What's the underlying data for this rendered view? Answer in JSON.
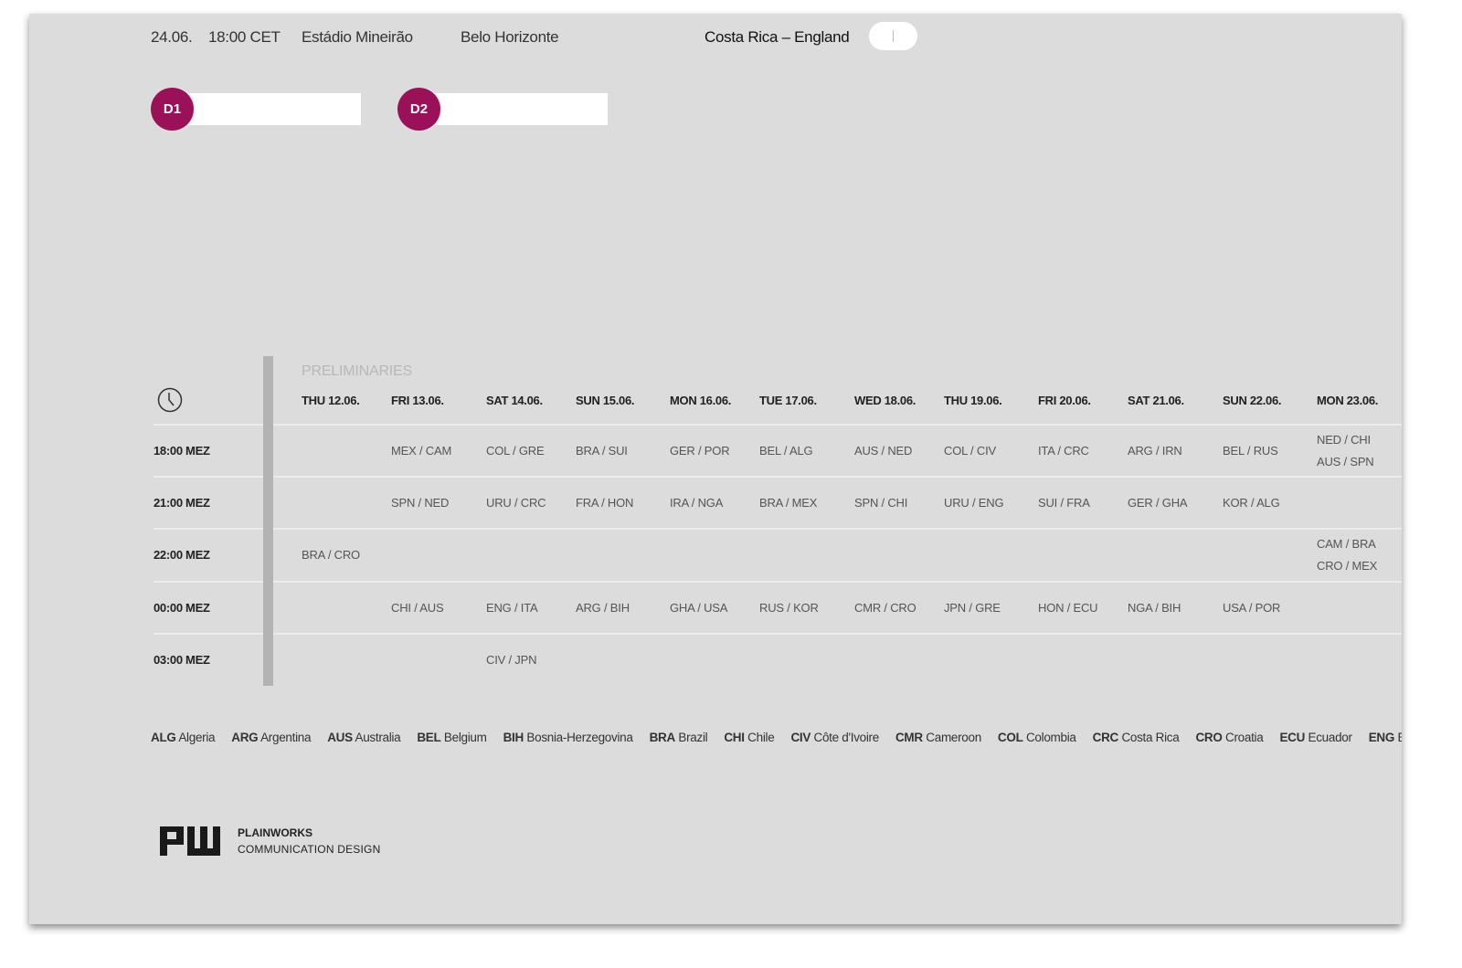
{
  "header": {
    "date": "24.06.",
    "time": "18:00 CET",
    "stadium": "Estádio Mineirão",
    "city": "Belo Horizonte",
    "match": "Costa Rica – England"
  },
  "colors": {
    "accent": "#9b1159",
    "background": "#dcdcdc"
  },
  "dfields": [
    {
      "label": "D1",
      "value": ""
    },
    {
      "label": "D2",
      "value": ""
    }
  ],
  "schedule": {
    "section": "PRELIMINARIES",
    "icon": "clock-icon",
    "days": [
      "THU 12.06.",
      "FRI 13.06.",
      "SAT 14.06.",
      "SUN 15.06.",
      "MON 16.06.",
      "TUE 17.06.",
      "WED 18.06.",
      "THU 19.06.",
      "FRI 20.06.",
      "SAT 21.06.",
      "SUN 22.06.",
      "MON 23.06."
    ],
    "rows": [
      {
        "time": "18:00 MEZ",
        "matches": [
          "",
          "MEX / CAM",
          "COL / GRE",
          "BRA / SUI",
          "GER / POR",
          "BEL / ALG",
          "AUS / NED",
          "COL / CIV",
          "ITA / CRC",
          "ARG / IRN",
          "BEL / RUS",
          "NED / CHI\nAUS / SPN"
        ]
      },
      {
        "time": "21:00 MEZ",
        "matches": [
          "",
          "SPN / NED",
          "URU / CRC",
          "FRA / HON",
          "IRA / NGA",
          "BRA / MEX",
          "SPN / CHI",
          "URU / ENG",
          "SUI / FRA",
          "GER / GHA",
          "KOR / ALG",
          ""
        ]
      },
      {
        "time": "22:00 MEZ",
        "matches": [
          "BRA / CRO",
          "",
          "",
          "",
          "",
          "",
          "",
          "",
          "",
          "",
          "",
          "CAM / BRA\nCRO / MEX"
        ]
      },
      {
        "time": "00:00 MEZ",
        "matches": [
          "",
          "CHI / AUS",
          "ENG / ITA",
          "ARG / BIH",
          "GHA / USA",
          "RUS / KOR",
          "CMR / CRO",
          "JPN / GRE",
          "HON / ECU",
          "NGA / BIH",
          "USA / POR",
          ""
        ]
      },
      {
        "time": "03:00 MEZ",
        "matches": [
          "",
          "",
          "CIV / JPN",
          "",
          "",
          "",
          "",
          "",
          "",
          "",
          "",
          ""
        ]
      }
    ]
  },
  "legend": [
    {
      "code": "ALG",
      "name": "Algeria"
    },
    {
      "code": "ARG",
      "name": "Argentina"
    },
    {
      "code": "AUS",
      "name": "Australia"
    },
    {
      "code": "BEL",
      "name": "Belgium"
    },
    {
      "code": "BIH",
      "name": "Bosnia-Herzegovina"
    },
    {
      "code": "BRA",
      "name": "Brazil"
    },
    {
      "code": "CHI",
      "name": "Chile"
    },
    {
      "code": "CIV",
      "name": "Côte d'Ivoire"
    },
    {
      "code": "CMR",
      "name": "Cameroon"
    },
    {
      "code": "COL",
      "name": "Colombia"
    },
    {
      "code": "CRC",
      "name": "Costa Rica"
    },
    {
      "code": "CRO",
      "name": "Croatia"
    },
    {
      "code": "ECU",
      "name": "Ecuador"
    },
    {
      "code": "ENG",
      "name": "Engla"
    }
  ],
  "footer": {
    "logo": "PW",
    "brand": "PLAINWORKS",
    "tagline": "COMMUNICATION DESIGN"
  }
}
